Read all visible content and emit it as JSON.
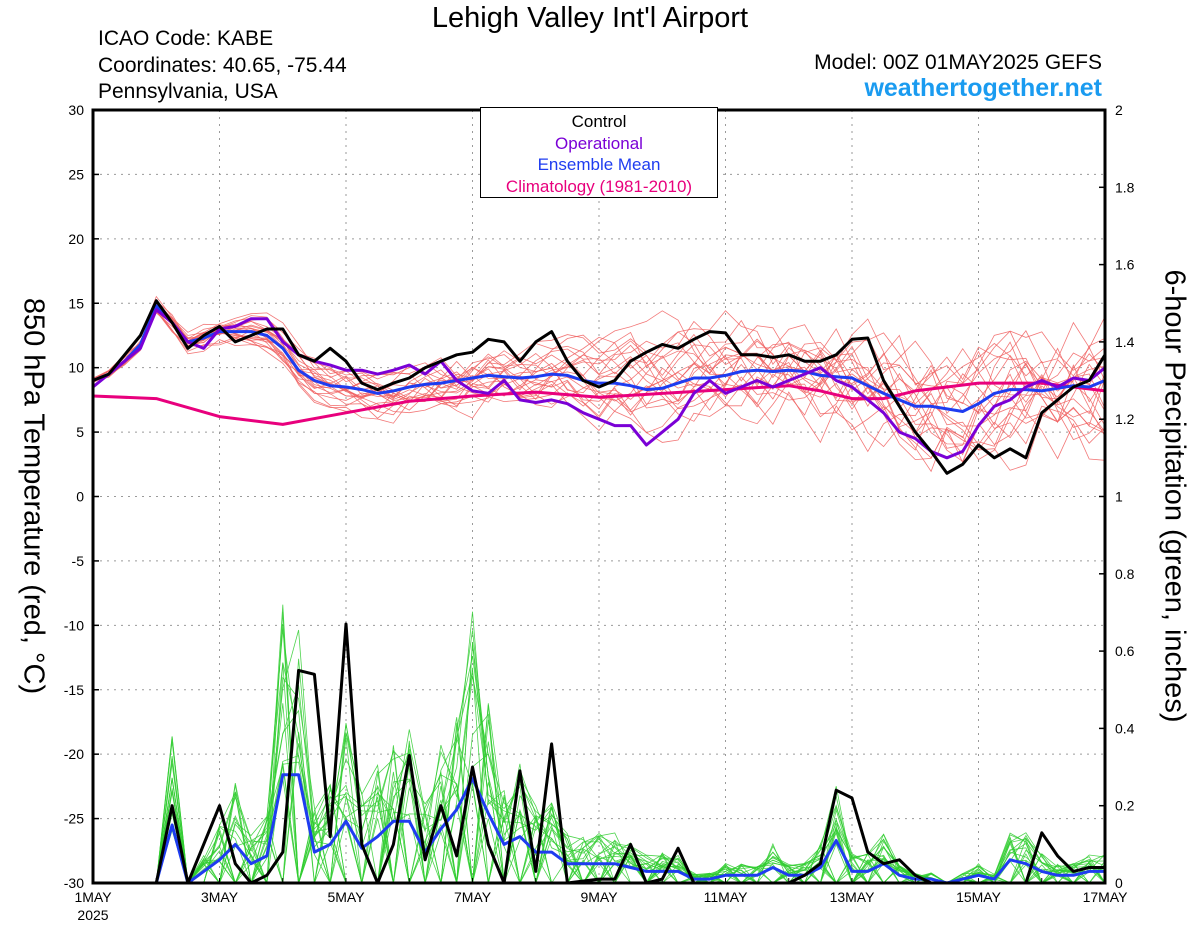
{
  "header": {
    "title": "Lehigh Valley Int'l Airport",
    "icao": "ICAO Code: KABE",
    "coordinates": "Coordinates: 40.65, -75.44",
    "location": "Pennsylvania, USA",
    "model": "Model: 00Z 01MAY2025 GEFS",
    "website": "weathertogether.net"
  },
  "colors": {
    "control": "#000000",
    "operational": "#7a00d6",
    "ensemble_mean": "#1e3cf0",
    "climatology": "#e8007d",
    "members_temp": "#f06060",
    "members_precip": "#30cc30",
    "website": "#1a9bf0"
  },
  "chart_data": {
    "type": "line",
    "title": "Lehigh Valley Int'l Airport",
    "y_left_label": "850 hPa Temperature (red, °C)",
    "y_right_label": "6-hour Precipitation (green, inches)",
    "x_ticks": [
      "1MAY",
      "3MAY",
      "5MAY",
      "7MAY",
      "9MAY",
      "11MAY",
      "13MAY",
      "15MAY",
      "17MAY"
    ],
    "x_year_label": "2025",
    "y_left_range": [
      -30,
      30
    ],
    "y_left_ticks": [
      "30",
      "25",
      "20",
      "15",
      "10",
      "5",
      "0",
      "-5",
      "-10",
      "-15",
      "-20",
      "-25",
      "-30"
    ],
    "y_right_range": [
      0,
      2
    ],
    "y_right_ticks": [
      "2",
      "1.8",
      "1.6",
      "1.4",
      "1.2",
      "1",
      "0.8",
      "0.6",
      "0.4",
      "0.2",
      "0"
    ],
    "grid": true,
    "legend": [
      "Control",
      "Operational",
      "Ensemble Mean",
      "Climatology (1981-2010)"
    ],
    "legend_position": "top-center",
    "temperature": {
      "control": [
        [
          0,
          9
        ],
        [
          0.25,
          9.5
        ],
        [
          0.5,
          11
        ],
        [
          0.75,
          12.5
        ],
        [
          1,
          15.2
        ],
        [
          1.25,
          13.5
        ],
        [
          1.5,
          11.5
        ],
        [
          1.75,
          12.5
        ],
        [
          2,
          13.2
        ],
        [
          2.25,
          12
        ],
        [
          2.5,
          12.5
        ],
        [
          2.75,
          13
        ],
        [
          3,
          13
        ],
        [
          3.25,
          11
        ],
        [
          3.5,
          10.5
        ],
        [
          3.75,
          11.5
        ],
        [
          4,
          10.5
        ],
        [
          4.25,
          8.8
        ],
        [
          4.5,
          8.3
        ],
        [
          4.75,
          8.8
        ],
        [
          5,
          9.2
        ],
        [
          5.25,
          10
        ],
        [
          5.5,
          10.5
        ],
        [
          5.75,
          11
        ],
        [
          6,
          11.2
        ],
        [
          6.25,
          12.2
        ],
        [
          6.5,
          12
        ],
        [
          6.75,
          10.5
        ],
        [
          7,
          12
        ],
        [
          7.25,
          12.8
        ],
        [
          7.5,
          10.5
        ],
        [
          7.75,
          9
        ],
        [
          8,
          8.5
        ],
        [
          8.25,
          9
        ],
        [
          8.5,
          10.5
        ],
        [
          8.75,
          11.2
        ],
        [
          9,
          11.8
        ],
        [
          9.25,
          11.5
        ],
        [
          9.5,
          12.2
        ],
        [
          9.75,
          12.8
        ],
        [
          10,
          12.7
        ],
        [
          10.25,
          11
        ],
        [
          10.5,
          11
        ],
        [
          10.75,
          10.8
        ],
        [
          11,
          11
        ],
        [
          11.25,
          10.5
        ],
        [
          11.5,
          10.5
        ],
        [
          11.75,
          11
        ],
        [
          12,
          12.2
        ],
        [
          12.25,
          12.3
        ],
        [
          12.5,
          9
        ],
        [
          12.75,
          7
        ],
        [
          13,
          5
        ],
        [
          13.25,
          3.5
        ],
        [
          13.5,
          1.8
        ],
        [
          13.75,
          2.5
        ],
        [
          14,
          4
        ],
        [
          14.25,
          3
        ],
        [
          14.5,
          3.7
        ],
        [
          14.75,
          3
        ],
        [
          15,
          6.5
        ],
        [
          15.25,
          7.5
        ],
        [
          15.5,
          8.5
        ],
        [
          15.75,
          9
        ],
        [
          16,
          11
        ]
      ],
      "operational": [
        [
          0,
          8.5
        ],
        [
          0.25,
          9.5
        ],
        [
          0.5,
          10.5
        ],
        [
          0.75,
          11.5
        ],
        [
          1,
          14.5
        ],
        [
          1.25,
          13.5
        ],
        [
          1.5,
          12
        ],
        [
          1.75,
          11.5
        ],
        [
          2,
          13
        ],
        [
          2.25,
          13.2
        ],
        [
          2.5,
          13.8
        ],
        [
          2.75,
          13.8
        ],
        [
          3,
          12
        ],
        [
          3.25,
          11
        ],
        [
          3.5,
          10.5
        ],
        [
          3.75,
          10.2
        ],
        [
          4,
          9.8
        ],
        [
          4.25,
          9.8
        ],
        [
          4.5,
          9.5
        ],
        [
          4.75,
          9.8
        ],
        [
          5,
          10.2
        ],
        [
          5.25,
          9.5
        ],
        [
          5.5,
          10.5
        ],
        [
          5.75,
          9
        ],
        [
          6,
          8.2
        ],
        [
          6.25,
          8
        ],
        [
          6.5,
          9
        ],
        [
          6.75,
          7.5
        ],
        [
          7,
          7.3
        ],
        [
          7.25,
          7.5
        ],
        [
          7.5,
          7.2
        ],
        [
          7.75,
          6.5
        ],
        [
          8,
          6
        ],
        [
          8.25,
          5.5
        ],
        [
          8.5,
          5.5
        ],
        [
          8.75,
          4
        ],
        [
          9,
          5
        ],
        [
          9.25,
          6
        ],
        [
          9.5,
          8
        ],
        [
          9.75,
          9
        ],
        [
          10,
          8
        ],
        [
          10.25,
          8.5
        ],
        [
          10.5,
          9
        ],
        [
          10.75,
          8.5
        ],
        [
          11,
          9
        ],
        [
          11.25,
          9.5
        ],
        [
          11.5,
          10
        ],
        [
          11.75,
          9
        ],
        [
          12,
          8.5
        ],
        [
          12.25,
          7.5
        ],
        [
          12.5,
          6.5
        ],
        [
          12.75,
          5
        ],
        [
          13,
          4.5
        ],
        [
          13.25,
          3.5
        ],
        [
          13.5,
          3
        ],
        [
          13.75,
          3.5
        ],
        [
          14,
          5.5
        ],
        [
          14.25,
          7
        ],
        [
          14.5,
          7.5
        ],
        [
          14.75,
          8.5
        ],
        [
          15,
          9
        ],
        [
          15.25,
          8.5
        ],
        [
          15.5,
          9.2
        ],
        [
          15.75,
          9
        ],
        [
          16,
          10
        ]
      ],
      "ensemble_mean": [
        [
          0,
          9
        ],
        [
          0.25,
          9.5
        ],
        [
          0.5,
          10.5
        ],
        [
          0.75,
          11.8
        ],
        [
          1,
          14.8
        ],
        [
          1.25,
          13.5
        ],
        [
          1.5,
          12
        ],
        [
          1.75,
          12.3
        ],
        [
          2,
          12.8
        ],
        [
          2.25,
          12.8
        ],
        [
          2.5,
          12.8
        ],
        [
          2.75,
          12.5
        ],
        [
          3,
          11.5
        ],
        [
          3.25,
          9.8
        ],
        [
          3.5,
          9
        ],
        [
          3.75,
          8.6
        ],
        [
          4,
          8.5
        ],
        [
          4.25,
          8.3
        ],
        [
          4.5,
          8
        ],
        [
          4.75,
          8.2
        ],
        [
          5,
          8.5
        ],
        [
          5.25,
          8.7
        ],
        [
          5.5,
          8.8
        ],
        [
          5.75,
          9
        ],
        [
          6,
          9.2
        ],
        [
          6.25,
          9.4
        ],
        [
          6.5,
          9.3
        ],
        [
          6.75,
          9.2
        ],
        [
          7,
          9.3
        ],
        [
          7.25,
          9.5
        ],
        [
          7.5,
          9.4
        ],
        [
          7.75,
          9
        ],
        [
          8,
          8.8
        ],
        [
          8.25,
          8.8
        ],
        [
          8.5,
          8.6
        ],
        [
          8.75,
          8.3
        ],
        [
          9,
          8.4
        ],
        [
          9.25,
          8.8
        ],
        [
          9.5,
          9.2
        ],
        [
          9.75,
          9.2
        ],
        [
          10,
          9.4
        ],
        [
          10.25,
          9.7
        ],
        [
          10.5,
          9.8
        ],
        [
          10.75,
          9.7
        ],
        [
          11,
          9.8
        ],
        [
          11.25,
          9.7
        ],
        [
          11.5,
          9.4
        ],
        [
          11.75,
          9.3
        ],
        [
          12,
          9.2
        ],
        [
          12.25,
          8.6
        ],
        [
          12.5,
          8
        ],
        [
          12.75,
          7.5
        ],
        [
          13,
          7
        ],
        [
          13.25,
          7
        ],
        [
          13.5,
          6.8
        ],
        [
          13.75,
          6.6
        ],
        [
          14,
          7.2
        ],
        [
          14.25,
          8
        ],
        [
          14.5,
          8.3
        ],
        [
          14.75,
          8.3
        ],
        [
          15,
          8.2
        ],
        [
          15.25,
          8.4
        ],
        [
          15.5,
          8.6
        ],
        [
          15.75,
          8.5
        ],
        [
          16,
          9
        ]
      ],
      "climatology": [
        [
          0,
          7.8
        ],
        [
          1,
          7.6
        ],
        [
          2,
          6.2
        ],
        [
          3,
          5.6
        ],
        [
          4,
          6.5
        ],
        [
          5,
          7.4
        ],
        [
          6,
          7.8
        ],
        [
          7,
          8.1
        ],
        [
          8,
          7.7
        ],
        [
          9,
          8
        ],
        [
          10,
          8.3
        ],
        [
          11,
          8.6
        ],
        [
          11.5,
          8.2
        ],
        [
          12,
          7.6
        ],
        [
          12.5,
          7.6
        ],
        [
          13,
          8.2
        ],
        [
          14,
          8.8
        ],
        [
          15,
          8.8
        ],
        [
          16,
          8.2
        ]
      ]
    },
    "precipitation": {
      "control": [
        [
          0,
          0
        ],
        [
          1,
          0
        ],
        [
          1.25,
          0.2
        ],
        [
          1.5,
          0
        ],
        [
          2,
          0.2
        ],
        [
          2.25,
          0.05
        ],
        [
          2.5,
          0
        ],
        [
          2.75,
          0.02
        ],
        [
          3,
          0.08
        ],
        [
          3.25,
          0.55
        ],
        [
          3.5,
          0.54
        ],
        [
          3.75,
          0.12
        ],
        [
          4,
          0.67
        ],
        [
          4.25,
          0.1
        ],
        [
          4.5,
          0
        ],
        [
          4.75,
          0.1
        ],
        [
          5,
          0.33
        ],
        [
          5.25,
          0.06
        ],
        [
          5.5,
          0.2
        ],
        [
          5.75,
          0.07
        ],
        [
          6,
          0.3
        ],
        [
          6.25,
          0.1
        ],
        [
          6.5,
          0
        ],
        [
          6.75,
          0.29
        ],
        [
          7,
          0.03
        ],
        [
          7.25,
          0.36
        ],
        [
          7.5,
          0
        ],
        [
          8,
          0.01
        ],
        [
          8.25,
          0.01
        ],
        [
          8.5,
          0.1
        ],
        [
          8.75,
          0
        ],
        [
          9,
          0.01
        ],
        [
          9.25,
          0.09
        ],
        [
          9.5,
          0
        ],
        [
          10,
          0
        ],
        [
          11,
          0
        ],
        [
          11.25,
          0.02
        ],
        [
          11.5,
          0.05
        ],
        [
          11.75,
          0.24
        ],
        [
          12,
          0.22
        ],
        [
          12.25,
          0.08
        ],
        [
          12.5,
          0.05
        ],
        [
          12.75,
          0.06
        ],
        [
          13,
          0.02
        ],
        [
          13.25,
          0
        ],
        [
          14,
          0
        ],
        [
          14.25,
          0
        ],
        [
          14.5,
          0
        ],
        [
          14.75,
          0
        ],
        [
          15,
          0.13
        ],
        [
          15.25,
          0.07
        ],
        [
          15.5,
          0.03
        ],
        [
          15.75,
          0.04
        ],
        [
          16,
          0.04
        ]
      ],
      "ensemble_mean": [
        [
          0,
          0
        ],
        [
          1,
          0
        ],
        [
          1.25,
          0.15
        ],
        [
          1.5,
          0
        ],
        [
          1.75,
          0.03
        ],
        [
          2,
          0.06
        ],
        [
          2.25,
          0.1
        ],
        [
          2.5,
          0.05
        ],
        [
          2.75,
          0.07
        ],
        [
          3,
          0.28
        ],
        [
          3.25,
          0.28
        ],
        [
          3.5,
          0.08
        ],
        [
          3.75,
          0.1
        ],
        [
          4,
          0.16
        ],
        [
          4.25,
          0.09
        ],
        [
          4.5,
          0.12
        ],
        [
          4.75,
          0.16
        ],
        [
          5,
          0.16
        ],
        [
          5.25,
          0.08
        ],
        [
          5.5,
          0.14
        ],
        [
          5.75,
          0.19
        ],
        [
          6,
          0.27
        ],
        [
          6.25,
          0.18
        ],
        [
          6.5,
          0.1
        ],
        [
          6.75,
          0.12
        ],
        [
          7,
          0.08
        ],
        [
          7.25,
          0.08
        ],
        [
          7.5,
          0.05
        ],
        [
          7.75,
          0.05
        ],
        [
          8,
          0.05
        ],
        [
          8.25,
          0.05
        ],
        [
          8.5,
          0.04
        ],
        [
          8.75,
          0.03
        ],
        [
          9,
          0.03
        ],
        [
          9.25,
          0.03
        ],
        [
          9.5,
          0.01
        ],
        [
          9.75,
          0.01
        ],
        [
          10,
          0.02
        ],
        [
          10.25,
          0.02
        ],
        [
          10.5,
          0.02
        ],
        [
          10.75,
          0.04
        ],
        [
          11,
          0.02
        ],
        [
          11.25,
          0.02
        ],
        [
          11.5,
          0.04
        ],
        [
          11.75,
          0.11
        ],
        [
          12,
          0.03
        ],
        [
          12.25,
          0.03
        ],
        [
          12.5,
          0.05
        ],
        [
          12.75,
          0.02
        ],
        [
          13,
          0.01
        ],
        [
          13.25,
          0.01
        ],
        [
          13.5,
          0
        ],
        [
          13.75,
          0.01
        ],
        [
          14,
          0.02
        ],
        [
          14.25,
          0.01
        ],
        [
          14.5,
          0.06
        ],
        [
          14.75,
          0.05
        ],
        [
          15,
          0.03
        ],
        [
          15.25,
          0.02
        ],
        [
          15.5,
          0.02
        ],
        [
          15.75,
          0.03
        ],
        [
          16,
          0.03
        ]
      ]
    }
  }
}
